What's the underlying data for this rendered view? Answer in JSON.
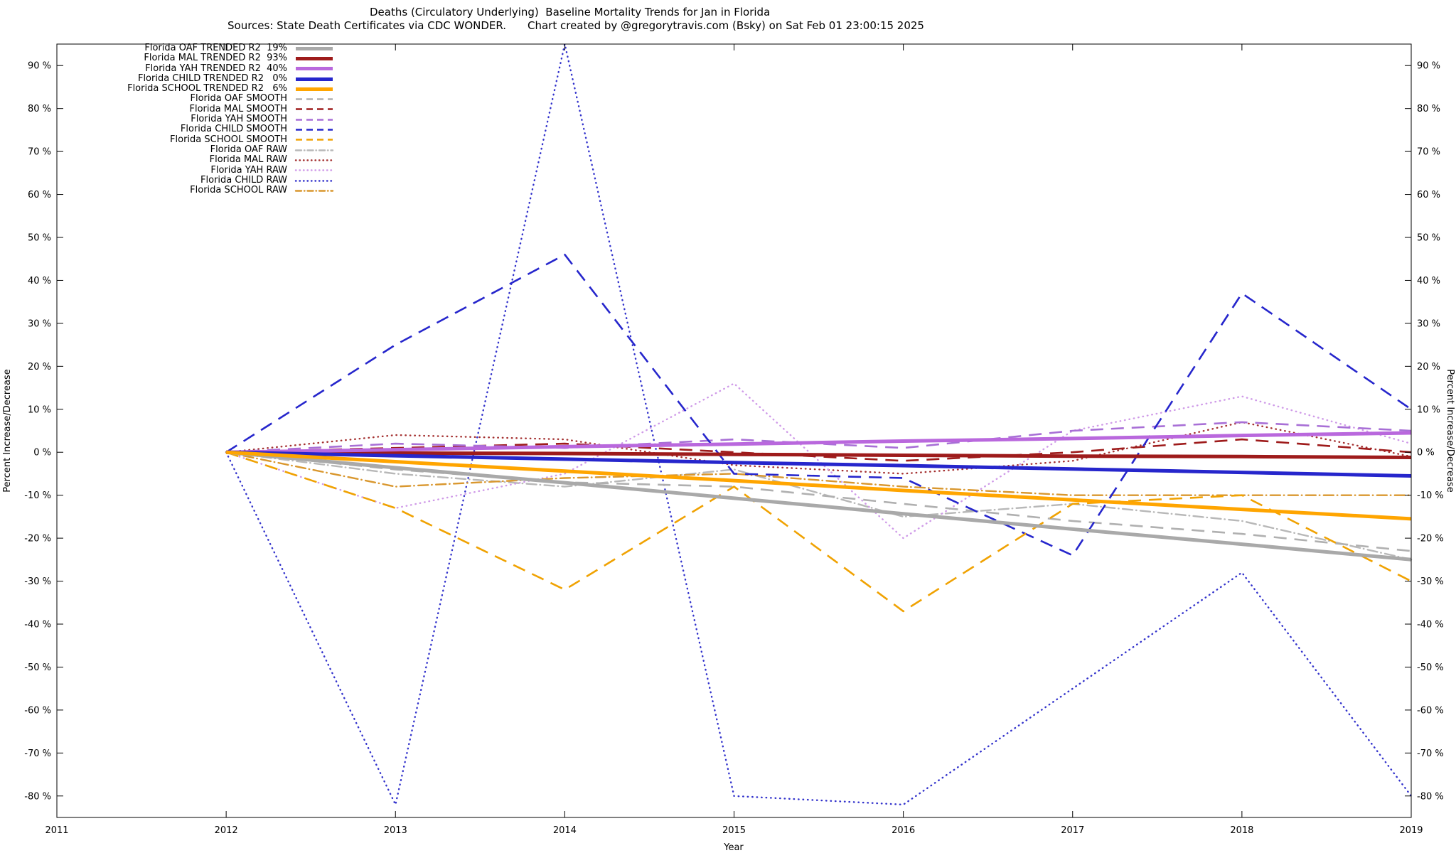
{
  "header": {
    "title_line1": "Deaths (Circulatory Underlying)  Baseline Mortality Trends for Jan in Florida",
    "source_text": "Sources: State Death Certificates via CDC WONDER.",
    "credit_text": "Chart created by @gregorytravis.com (Bsky) on Sat Feb 01 23:00:15 2025"
  },
  "chart_data": {
    "type": "line",
    "title": "Deaths (Circulatory Underlying)  Baseline Mortality Trends for Jan in Florida",
    "xlabel": "Year",
    "ylabel": "Percent Increase/Decrease",
    "xlim": [
      2011,
      2019
    ],
    "ylim": [
      -85,
      95
    ],
    "x_ticks": [
      2011,
      2012,
      2013,
      2014,
      2015,
      2016,
      2017,
      2018,
      2019
    ],
    "y_ticks": [
      90,
      80,
      70,
      60,
      50,
      40,
      30,
      20,
      10,
      0,
      -10,
      -20,
      -30,
      -40,
      -50,
      -60,
      -70,
      -80
    ],
    "y_tick_suffix": " %",
    "grid": false,
    "legend_position": "top-left",
    "x": [
      2012,
      2013,
      2014,
      2015,
      2016,
      2017,
      2018,
      2019
    ],
    "series": [
      {
        "name": "Florida OAF TRENDED",
        "legend_label": "Florida OAF TRENDED R2  19%",
        "r2": "19%",
        "group": "trended",
        "line_style": "solid",
        "color": "#a9a9a9",
        "values": [
          0,
          -3.6,
          -7.1,
          -10.7,
          -14.3,
          -17.9,
          -21.4,
          -25
        ]
      },
      {
        "name": "Florida MAL TRENDED",
        "legend_label": "Florida MAL TRENDED R2  93%",
        "r2": "93%",
        "group": "trended",
        "line_style": "solid",
        "color": "#9e1b1b",
        "values": [
          0,
          -0.2,
          -0.3,
          -0.5,
          -0.7,
          -0.9,
          -1.0,
          -1.2
        ]
      },
      {
        "name": "Florida YAH TRENDED",
        "legend_label": "Florida YAH TRENDED R2  40%",
        "r2": "40%",
        "group": "trended",
        "line_style": "solid",
        "color": "#b968dd",
        "values": [
          0,
          0.6,
          1.3,
          1.9,
          2.6,
          3.2,
          3.9,
          4.5
        ]
      },
      {
        "name": "Florida CHILD TRENDED",
        "legend_label": "Florida CHILD TRENDED R2   0%",
        "r2": "0%",
        "group": "trended",
        "line_style": "solid",
        "color": "#2626cc",
        "values": [
          0,
          -0.8,
          -1.6,
          -2.4,
          -3.1,
          -3.9,
          -4.7,
          -5.5
        ]
      },
      {
        "name": "Florida SCHOOL TRENDED",
        "legend_label": "Florida SCHOOL TRENDED R2   6%",
        "r2": "6%",
        "group": "trended",
        "line_style": "solid",
        "color": "#ffa500",
        "values": [
          0,
          -2.2,
          -4.4,
          -6.6,
          -8.9,
          -11.1,
          -13.3,
          -15.5
        ]
      },
      {
        "name": "Florida OAF SMOOTH",
        "legend_label": "Florida OAF SMOOTH",
        "group": "smooth",
        "line_style": "dashed",
        "color": "#b0b0b0",
        "values": [
          0,
          -4,
          -7,
          -8,
          -12,
          -16,
          -19,
          -23
        ]
      },
      {
        "name": "Florida MAL SMOOTH",
        "legend_label": "Florida MAL SMOOTH",
        "group": "smooth",
        "line_style": "dashed",
        "color": "#9e1b1b",
        "values": [
          0,
          1,
          2,
          0,
          -2,
          0,
          3,
          0
        ]
      },
      {
        "name": "Florida YAH SMOOTH",
        "legend_label": "Florida YAH SMOOTH",
        "group": "smooth",
        "line_style": "dashed",
        "color": "#a86fd6",
        "values": [
          0,
          2,
          1,
          3,
          1,
          5,
          7,
          5
        ]
      },
      {
        "name": "Florida CHILD SMOOTH",
        "legend_label": "Florida CHILD SMOOTH",
        "group": "smooth",
        "line_style": "dashed",
        "color": "#2626cc",
        "values": [
          0,
          25,
          46,
          -5,
          -6,
          -24,
          37,
          10
        ]
      },
      {
        "name": "Florida SCHOOL SMOOTH",
        "legend_label": "Florida SCHOOL SMOOTH",
        "group": "smooth",
        "line_style": "dashed",
        "color": "#f0a202",
        "values": [
          0,
          -13,
          -32,
          -8,
          -37,
          -12,
          -10,
          -30
        ]
      },
      {
        "name": "Florida OAF RAW",
        "legend_label": "Florida OAF RAW",
        "group": "raw",
        "line_style": "dashdot",
        "color": "#b8b8b8",
        "values": [
          0,
          -5,
          -8,
          -4,
          -15,
          -12,
          -16,
          -25
        ]
      },
      {
        "name": "Florida MAL RAW",
        "legend_label": "Florida MAL RAW",
        "group": "raw",
        "line_style": "dotted",
        "color": "#a43030",
        "values": [
          0,
          4,
          3,
          -3,
          -5,
          -2,
          7,
          -1
        ]
      },
      {
        "name": "Florida YAH RAW",
        "legend_label": "Florida YAH RAW",
        "group": "raw",
        "line_style": "dotted",
        "color": "#cf9ae8",
        "values": [
          0,
          -13,
          -5,
          16,
          -20,
          5,
          13,
          2
        ]
      },
      {
        "name": "Florida CHILD RAW",
        "legend_label": "Florida CHILD RAW",
        "group": "raw",
        "line_style": "dotted",
        "color": "#3333cc",
        "values": [
          0,
          -82,
          95,
          -80,
          -82,
          -55,
          -28,
          -80
        ]
      },
      {
        "name": "Florida SCHOOL RAW",
        "legend_label": "Florida SCHOOL RAW",
        "group": "raw",
        "line_style": "dashdot",
        "color": "#d9972e",
        "values": [
          0,
          -8,
          -6,
          -5,
          -8,
          -10,
          -10,
          -10
        ]
      }
    ]
  }
}
